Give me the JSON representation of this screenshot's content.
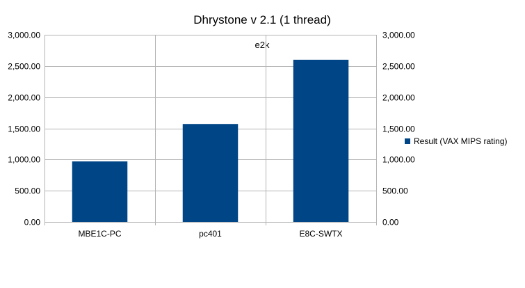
{
  "chart_data": {
    "type": "bar",
    "title": "Dhrystone v 2.1 (1 thread)",
    "subtitle": "e2k",
    "categories": [
      "MBE1C-PC",
      "pc401",
      "E8C-SWTX"
    ],
    "series": [
      {
        "name": "Result (VAX MIPS rating)",
        "values": [
          970,
          1570,
          2600
        ]
      }
    ],
    "ylim": [
      0,
      3000
    ],
    "yticks": [
      0,
      500,
      1000,
      1500,
      2000,
      2500,
      3000
    ],
    "ytick_labels": [
      "0.00",
      "500.00",
      "1,000.00",
      "1,500.00",
      "2,000.00",
      "2,500.00",
      "3,000.00"
    ],
    "secondary_y_axis": true,
    "grid": true,
    "legend_position": "right",
    "colors": {
      "bar": "#004586",
      "grid": "#b3b3b3",
      "axis": "#b3b3b3"
    }
  }
}
